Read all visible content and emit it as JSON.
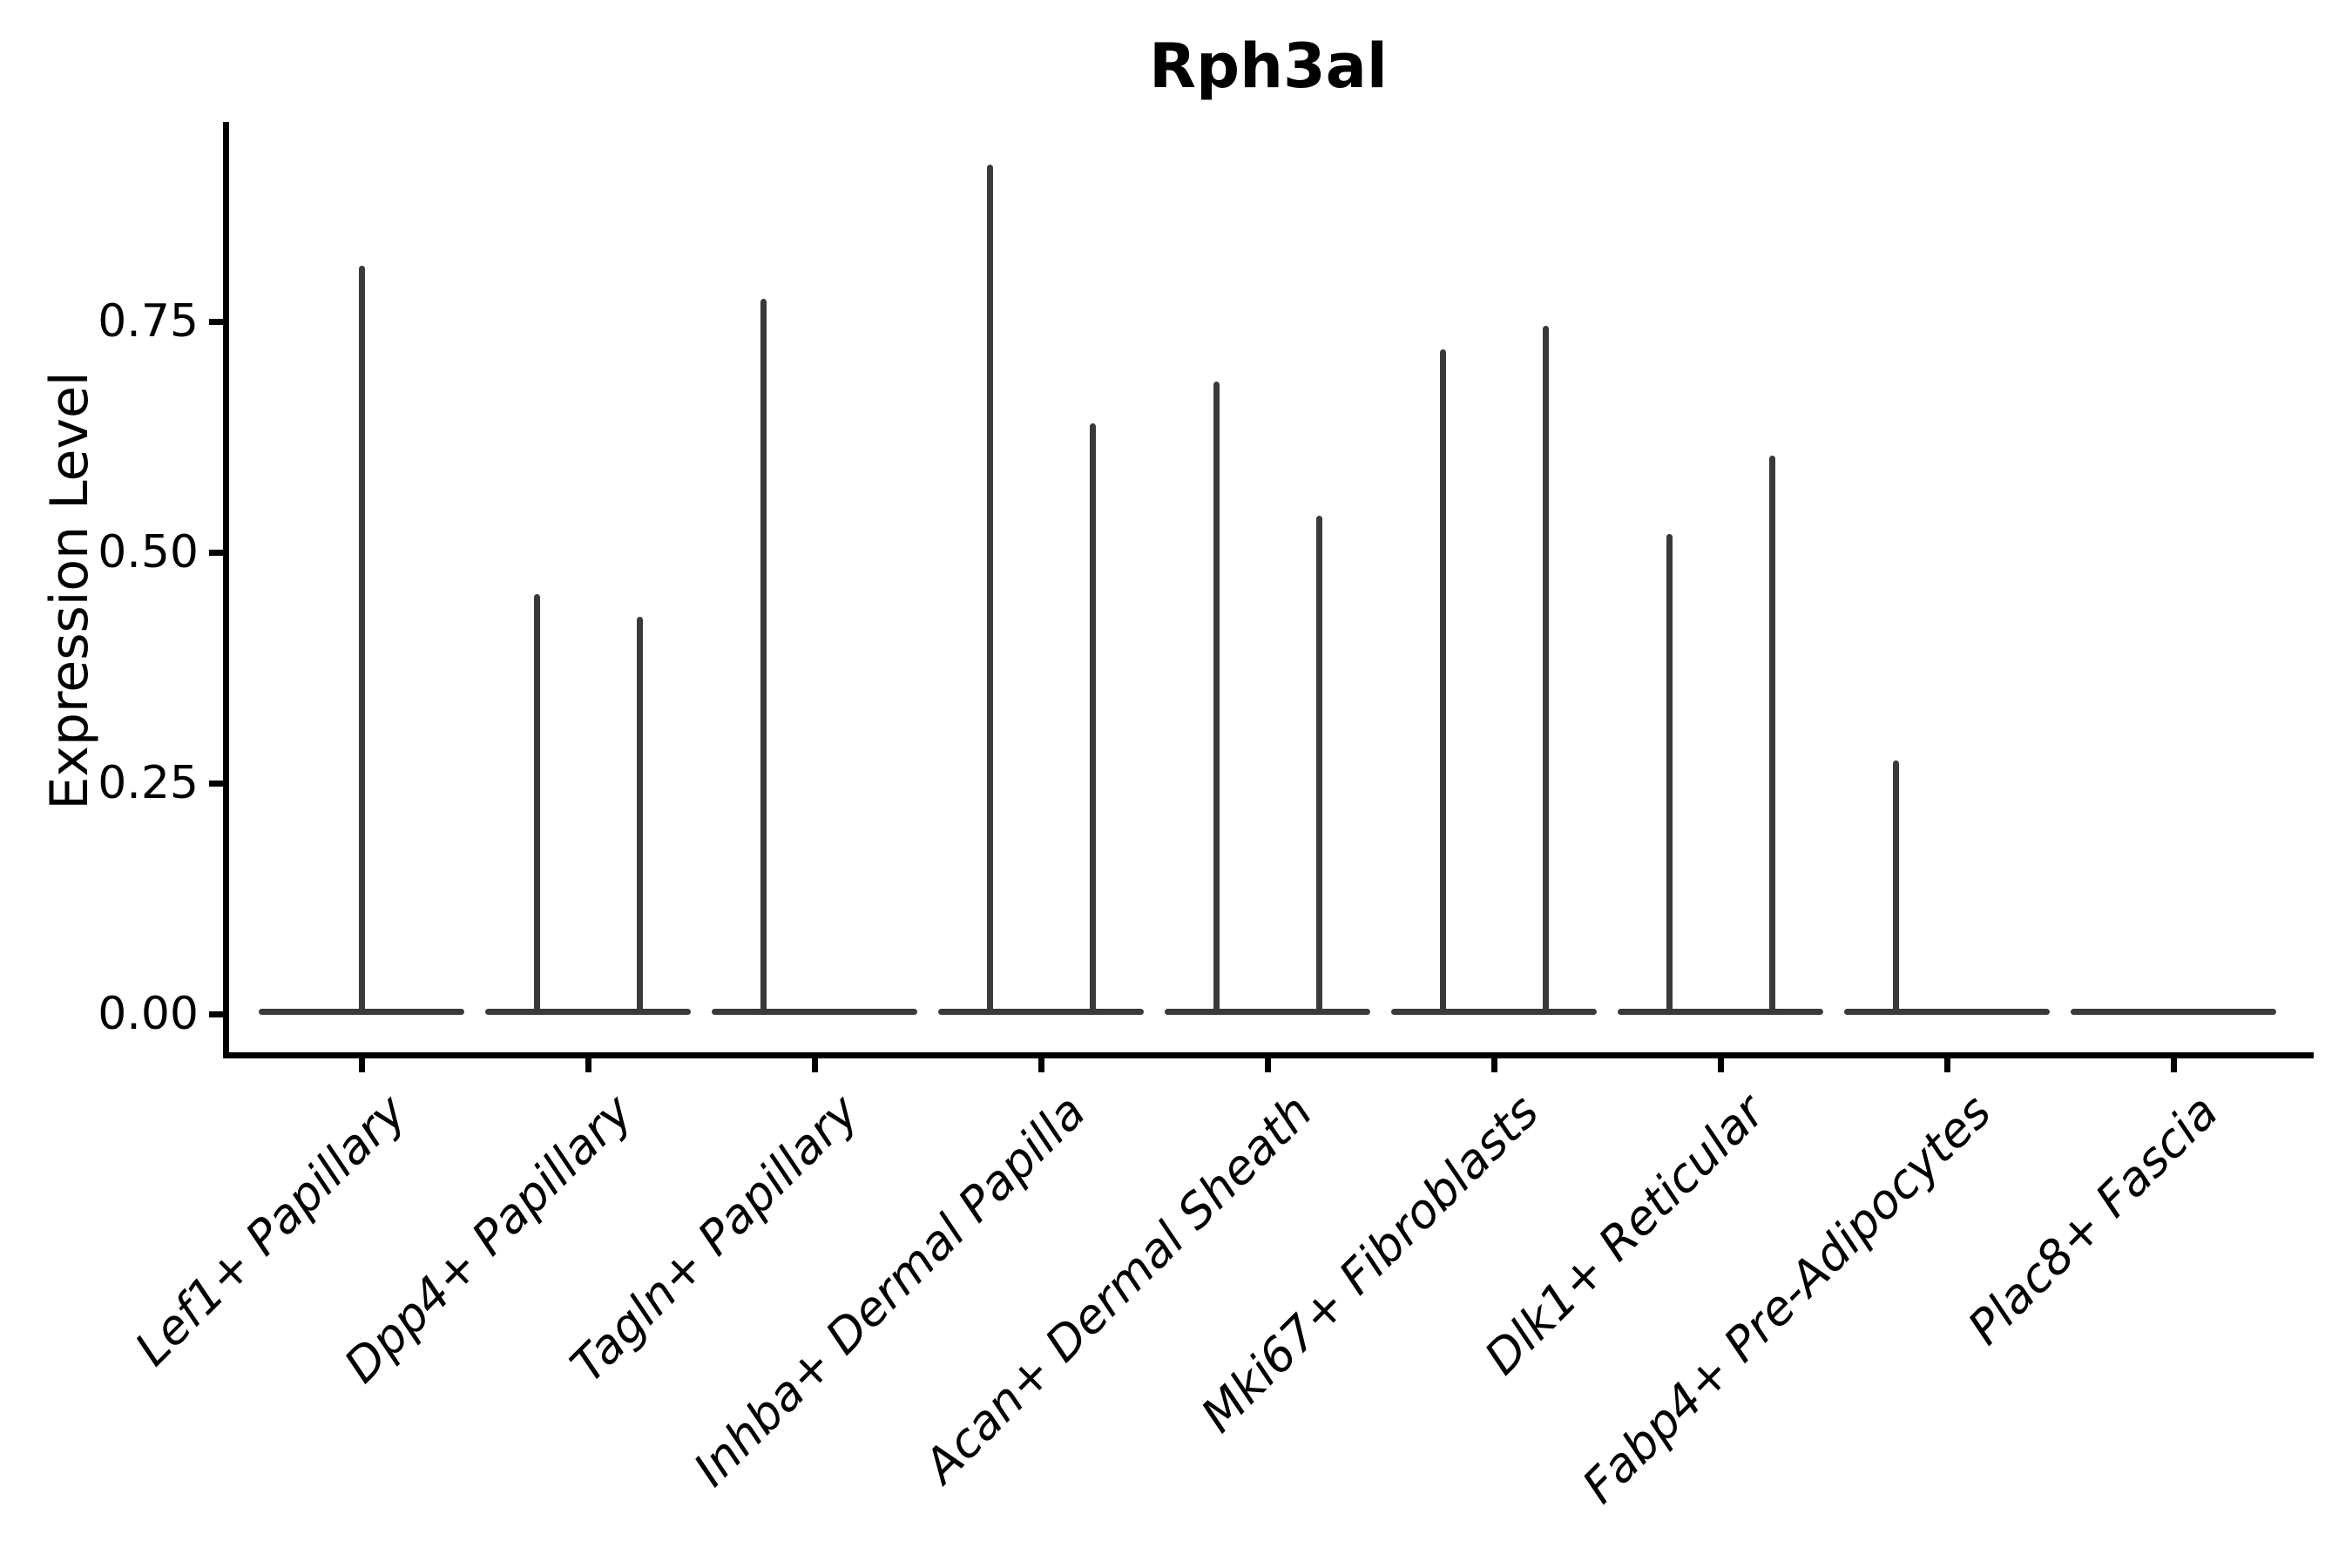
{
  "chart_data": {
    "type": "violin",
    "title": "Rph3al",
    "ylabel": "Expression Level",
    "xlabel": "",
    "ytick_labels": [
      "0.00",
      "0.25",
      "0.50",
      "0.75"
    ],
    "ytick_values": [
      0.0,
      0.25,
      0.5,
      0.75
    ],
    "ylim": [
      0,
      0.97
    ],
    "grid": false,
    "legend": "none",
    "categories": [
      "Lef1+ Papillary",
      "Dpp4+ Papillary",
      "Tagln+ Papillary",
      "Inhba+ Dermal Papilla",
      "Acan+ Dermal Sheath",
      "Mki67+ Fibroblasts",
      "Dlk1+ Reticular",
      "Fabp4+ Pre-Adipocytes",
      "Plac8+ Fascia"
    ],
    "series": [
      {
        "category": "Lef1+ Papillary",
        "violins": [
          {
            "position": "center",
            "max_expression": 0.81
          }
        ]
      },
      {
        "category": "Dpp4+ Papillary",
        "violins": [
          {
            "position": "left",
            "max_expression": 0.455
          },
          {
            "position": "right",
            "max_expression": 0.43
          }
        ]
      },
      {
        "category": "Tagln+ Papillary",
        "violins": [
          {
            "position": "left",
            "max_expression": 0.775
          }
        ]
      },
      {
        "category": "Inhba+ Dermal Papilla",
        "violins": [
          {
            "position": "left",
            "max_expression": 0.92
          },
          {
            "position": "right",
            "max_expression": 0.64
          }
        ]
      },
      {
        "category": "Acan+ Dermal Sheath",
        "violins": [
          {
            "position": "left",
            "max_expression": 0.685
          },
          {
            "position": "right",
            "max_expression": 0.54
          }
        ]
      },
      {
        "category": "Mki67+ Fibroblasts",
        "violins": [
          {
            "position": "left",
            "max_expression": 0.72
          },
          {
            "position": "right",
            "max_expression": 0.745
          }
        ]
      },
      {
        "category": "Dlk1+ Reticular",
        "violins": [
          {
            "position": "left",
            "max_expression": 0.52
          },
          {
            "position": "right",
            "max_expression": 0.605
          }
        ]
      },
      {
        "category": "Fabp4+ Pre-Adipocytes",
        "violins": [
          {
            "position": "left",
            "max_expression": 0.275
          }
        ]
      },
      {
        "category": "Plac8+ Fascia",
        "violins": []
      }
    ],
    "baseline_expression": 0.0
  },
  "colors": {
    "violin_stroke": "#3a3a3a",
    "axis": "#000000",
    "text": "#000000",
    "background": "#ffffff"
  }
}
